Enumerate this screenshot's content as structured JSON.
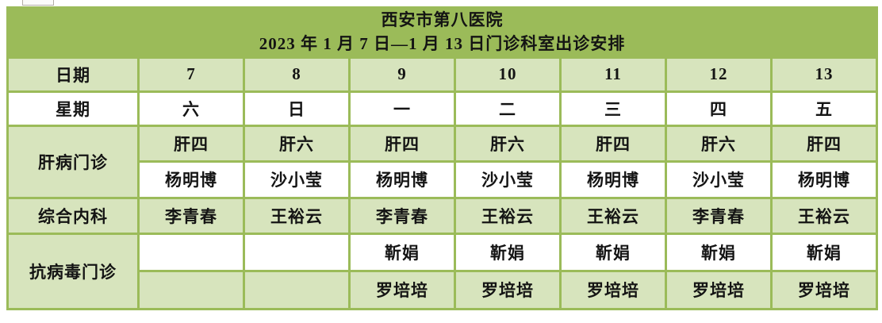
{
  "colors": {
    "band_green": "#9bbb59",
    "light_green": "#d7e4bd",
    "cell_white": "#ffffff",
    "border_green": "#9bbb59",
    "title_text": "#ffffff",
    "body_text": "#141414"
  },
  "title": {
    "line1": "西安市第八医院",
    "line2": "2023 年 1 月 7 日—1 月 13 日门诊科室出诊安排"
  },
  "schedule": {
    "date_row": {
      "label": "日期",
      "values": [
        "7",
        "8",
        "9",
        "10",
        "11",
        "12",
        "13"
      ]
    },
    "week_row": {
      "label": "星期",
      "values": [
        "六",
        "日",
        "一",
        "二",
        "三",
        "四",
        "五"
      ]
    },
    "sections": [
      {
        "label": "肝病门诊",
        "rows": [
          {
            "shade": "light",
            "values": [
              "肝四",
              "肝六",
              "肝四",
              "肝六",
              "肝四",
              "肝六",
              "肝四"
            ]
          },
          {
            "shade": "white",
            "values": [
              "杨明博",
              "沙小莹",
              "杨明博",
              "沙小莹",
              "杨明博",
              "沙小莹",
              "杨明博"
            ]
          }
        ]
      },
      {
        "label": "综合内科",
        "rows": [
          {
            "shade": "light",
            "values": [
              "李青春",
              "王裕云",
              "李青春",
              "王裕云",
              "王裕云",
              "李青春",
              "王裕云"
            ]
          }
        ]
      },
      {
        "label": "抗病毒门诊",
        "rows": [
          {
            "shade": "white",
            "values": [
              "",
              "",
              "靳娟",
              "靳娟",
              "靳娟",
              "靳娟",
              "靳娟"
            ]
          },
          {
            "shade": "light",
            "values": [
              "",
              "",
              "罗培培",
              "罗培培",
              "罗培培",
              "罗培培",
              "罗培培"
            ]
          }
        ]
      }
    ]
  }
}
